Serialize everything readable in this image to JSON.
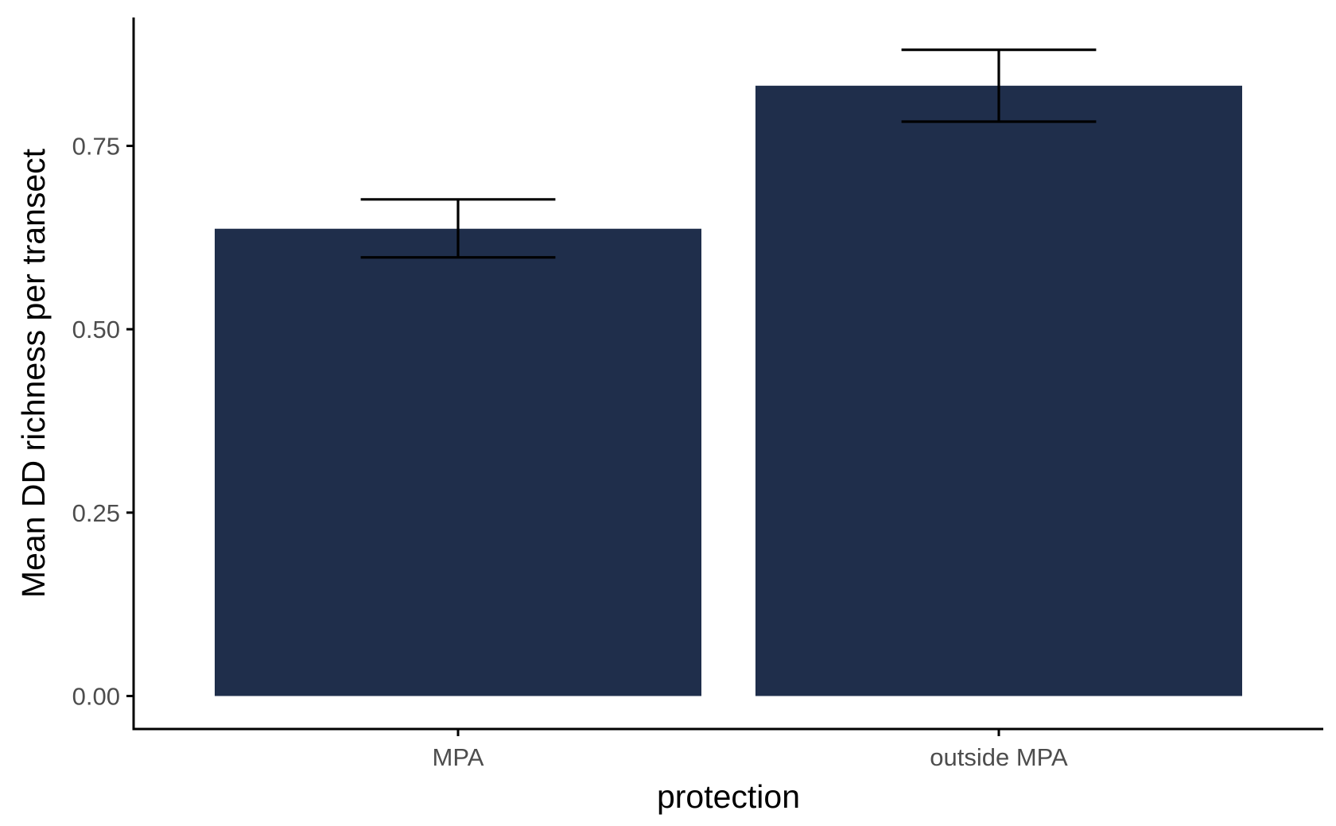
{
  "chart_data": {
    "type": "bar",
    "categories": [
      "MPA",
      "outside MPA"
    ],
    "values": [
      0.637,
      0.832
    ],
    "error_bars": [
      {
        "low": 0.598,
        "high": 0.677
      },
      {
        "low": 0.783,
        "high": 0.881
      }
    ],
    "xlabel": "protection",
    "ylabel": "Mean DD richness per transect",
    "ylim": [
      -0.045,
      0.925
    ],
    "yticks": [
      0,
      0.25,
      0.5,
      0.75
    ],
    "ytick_labels": [
      "0.00",
      "0.25",
      "0.50",
      "0.75"
    ],
    "colors": {
      "bar": "#1f2e4b",
      "error_bar": "#000000",
      "axis": "#000000",
      "tick_label": "#4d4d4d"
    },
    "grid": false,
    "legend": "none"
  }
}
